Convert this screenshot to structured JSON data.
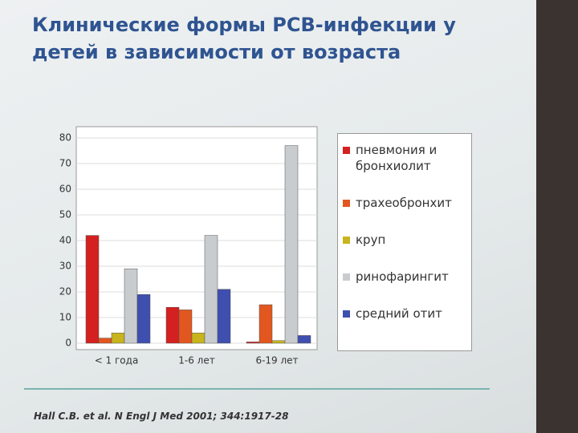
{
  "chart_data": {
    "type": "bar",
    "title": "Клинические формы РСВ-инфекции у детей в зависимости от возраста",
    "categories": [
      "< 1 года",
      "1-6 лет",
      "6-19 лет"
    ],
    "series": [
      {
        "name": "пневмония и бронхиолит",
        "color": "#d42020",
        "values": [
          42,
          14,
          0.5
        ]
      },
      {
        "name": "трахеобронхит",
        "color": "#e2561f",
        "values": [
          2,
          13,
          15
        ]
      },
      {
        "name": "круп",
        "color": "#c8b41c",
        "values": [
          4,
          4,
          1
        ]
      },
      {
        "name": "ринофарингит",
        "color": "#c9cccf",
        "values": [
          29,
          42,
          77
        ]
      },
      {
        "name": "средний отит",
        "color": "#3f4fb0",
        "values": [
          19,
          21,
          3
        ]
      }
    ],
    "ylim": [
      0,
      80
    ],
    "yticks": [
      0,
      10,
      20,
      30,
      40,
      50,
      60,
      70,
      80
    ],
    "grid": true,
    "legend": "right",
    "footnote": "Hall C.B. et al. N Engl J Med 2001; 344:1917-28"
  }
}
